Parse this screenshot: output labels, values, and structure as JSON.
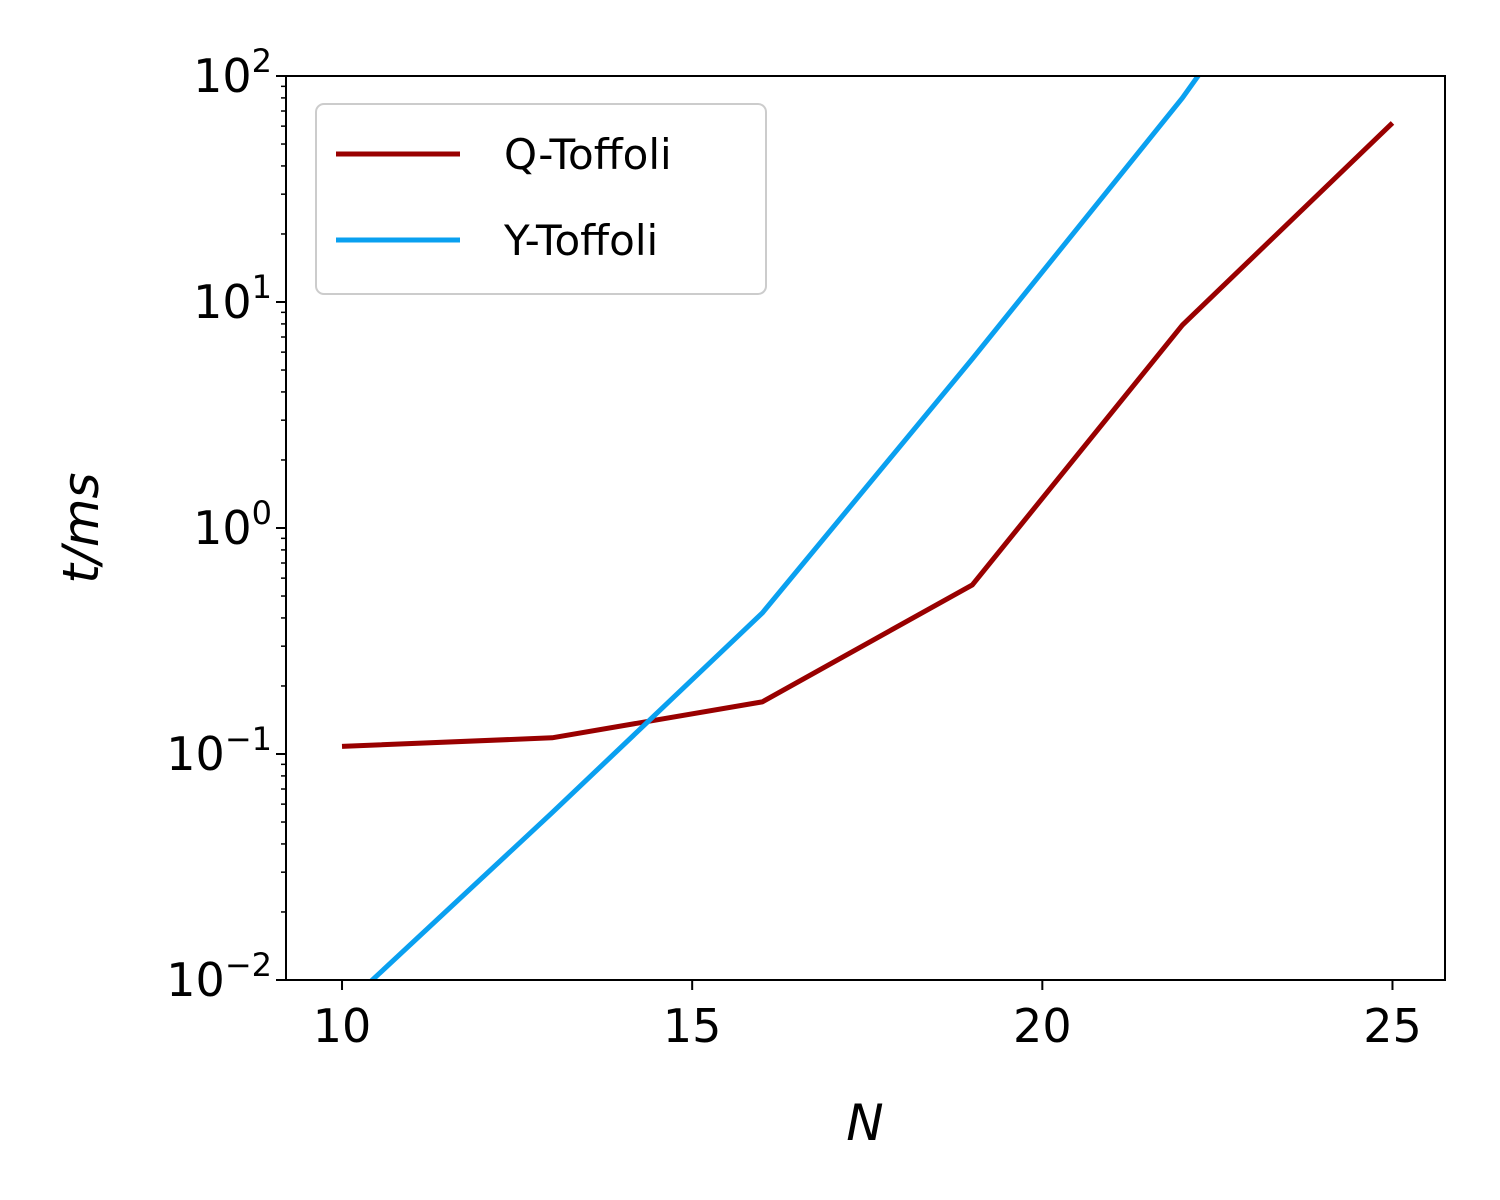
{
  "chart_data": {
    "type": "line",
    "xlabel": "N",
    "ylabel": "t/ms",
    "xlim": [
      9.2,
      25.75
    ],
    "ylim": [
      0.01,
      100
    ],
    "yscale": "log",
    "xticks": [
      10,
      15,
      20,
      25
    ],
    "yticks": [
      {
        "value": 0.01,
        "base": "10",
        "exp": "−2"
      },
      {
        "value": 0.1,
        "base": "10",
        "exp": "−1"
      },
      {
        "value": 1,
        "base": "10",
        "exp": "0"
      },
      {
        "value": 10,
        "base": "10",
        "exp": "1"
      },
      {
        "value": 100,
        "base": "10",
        "exp": "2"
      }
    ],
    "grid": false,
    "legend_position": "top-left",
    "series": [
      {
        "name": "Q-Toffoli",
        "color": "#990000",
        "x": [
          10,
          13,
          16,
          19,
          22,
          25
        ],
        "y": [
          0.108,
          0.118,
          0.17,
          0.56,
          7.9,
          62
        ]
      },
      {
        "name": "Y-Toffoli",
        "color": "#0aa0f0",
        "x": [
          10,
          13,
          16,
          19,
          22,
          25
        ],
        "y": [
          0.0075,
          0.055,
          0.42,
          5.6,
          80,
          1600
        ]
      }
    ]
  }
}
